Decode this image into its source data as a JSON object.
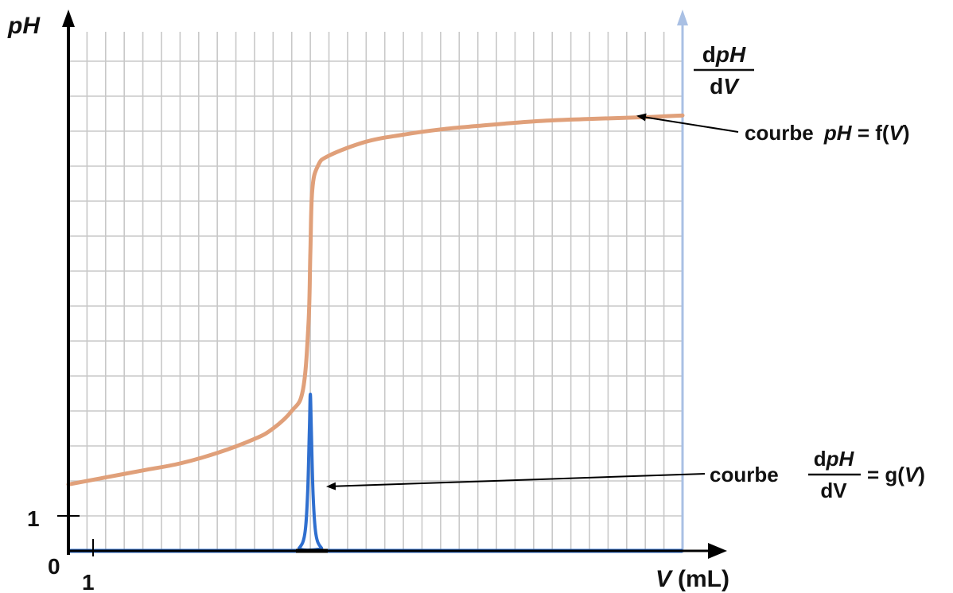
{
  "chart_data": {
    "type": "line",
    "xlabel": {
      "symbol": "V",
      "unit": "(mL)"
    },
    "ylabel": "pH",
    "right_axis_label": {
      "numerator": "dpH",
      "numerator_d": "d",
      "numerator_var": "pH",
      "denominator_d": "d",
      "denominator_var": "V"
    },
    "x_ticks": [
      {
        "value": 0,
        "label": "0"
      },
      {
        "value": 1,
        "label": "1"
      }
    ],
    "y_ticks": [
      {
        "value": 1,
        "label": "1"
      }
    ],
    "xlim": [
      0,
      33
    ],
    "ylim": [
      0,
      14
    ],
    "grid": true,
    "colors": {
      "ph_curve": "#e0a07a",
      "derivative_curve": "#2f6fcf",
      "grid": "#c8c8c8",
      "axis": "#000000",
      "right_axis": "#a9c0e4"
    },
    "series": [
      {
        "id": "ph",
        "x": [
          0,
          2,
          4,
          6,
          8,
          10,
          11,
          12,
          12.6,
          12.9,
          13,
          13.1,
          13.4,
          14,
          16,
          18,
          20,
          22,
          25,
          28,
          31,
          33
        ],
        "y": [
          1.9,
          2.1,
          2.3,
          2.5,
          2.8,
          3.2,
          3.5,
          4.0,
          4.6,
          6.5,
          8.5,
          10.3,
          11.0,
          11.3,
          11.7,
          11.9,
          12.05,
          12.15,
          12.28,
          12.35,
          12.4,
          12.45
        ]
      },
      {
        "id": "dph",
        "x": [
          0,
          12,
          12.4,
          12.7,
          12.85,
          12.95,
          13.0,
          13.05,
          13.15,
          13.3,
          13.6,
          14,
          33
        ],
        "y": [
          0,
          0,
          0.05,
          0.3,
          1.0,
          2.2,
          2.8,
          2.2,
          1.0,
          0.3,
          0.05,
          0,
          0
        ]
      }
    ],
    "annotations": [
      {
        "id": "ph_curve",
        "prefix": "courbe ",
        "var": "pH",
        "eq": " = f(",
        "arg": "V",
        "close": ")"
      },
      {
        "id": "dph_curve",
        "prefix": "courbe ",
        "frac_num_d": "d",
        "frac_num_var": "pH",
        "frac_den": "dV",
        "eq": " = g(",
        "arg": "V",
        "close": ")"
      }
    ]
  }
}
